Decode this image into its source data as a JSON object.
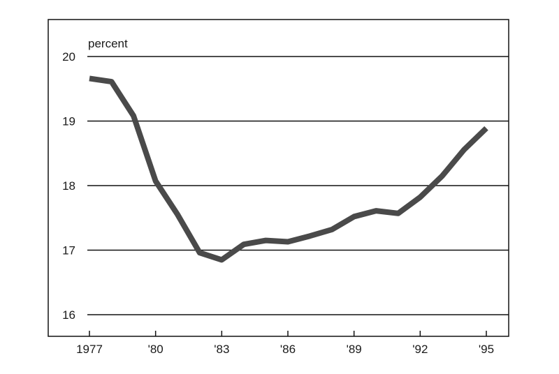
{
  "chart_data": {
    "type": "line",
    "title": "",
    "xlabel": "",
    "ylabel": "percent",
    "ylim": [
      16,
      20
    ],
    "xlim": [
      1977,
      1995
    ],
    "grid": true,
    "y_ticks": [
      {
        "value": 20,
        "label": "20"
      },
      {
        "value": 19,
        "label": "19"
      },
      {
        "value": 18,
        "label": "18"
      },
      {
        "value": 17,
        "label": "17"
      },
      {
        "value": 16,
        "label": "16"
      }
    ],
    "x_tick_labels": [
      {
        "value": 1977,
        "label": "1977"
      },
      {
        "value": 1980,
        "label": "'80"
      },
      {
        "value": 1983,
        "label": "'83"
      },
      {
        "value": 1986,
        "label": "'86"
      },
      {
        "value": 1989,
        "label": "'89"
      },
      {
        "value": 1992,
        "label": "'92"
      },
      {
        "value": 1995,
        "label": "'95"
      }
    ],
    "series": [
      {
        "color": "#4a4a4a",
        "x": [
          1977,
          1978,
          1979,
          1980,
          1981,
          1982,
          1983,
          1984,
          1985,
          1986,
          1987,
          1988,
          1989,
          1990,
          1991,
          1992,
          1993,
          1994,
          1995
        ],
        "values": [
          19.66,
          19.61,
          19.08,
          18.07,
          17.55,
          16.96,
          16.85,
          17.09,
          17.15,
          17.13,
          17.22,
          17.32,
          17.52,
          17.61,
          17.57,
          17.82,
          18.15,
          18.56,
          18.89
        ]
      }
    ]
  }
}
